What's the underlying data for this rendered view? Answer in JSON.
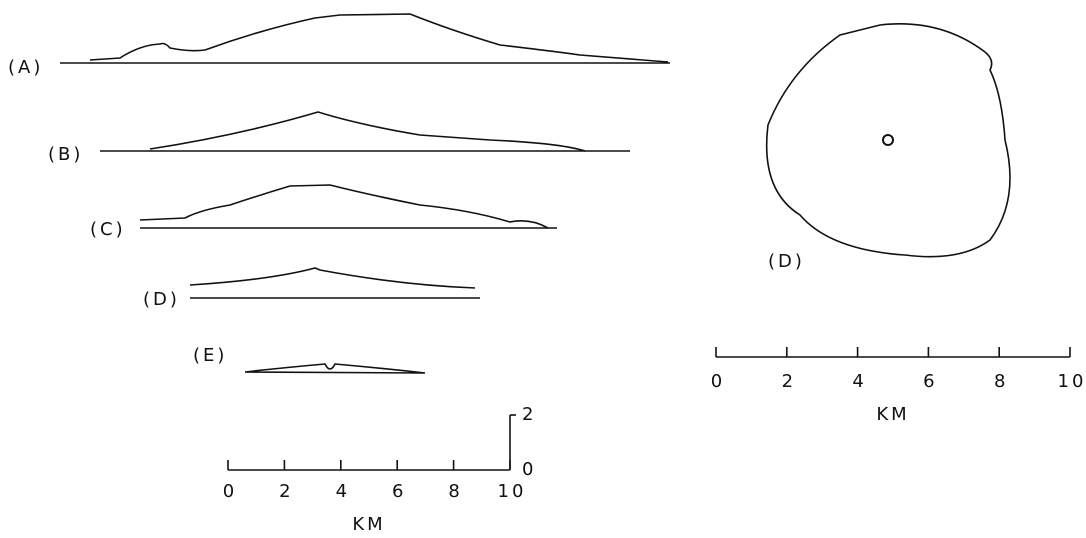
{
  "profiles": [
    {
      "label": "(A)"
    },
    {
      "label": "(B)"
    },
    {
      "label": "(C)"
    },
    {
      "label": "(D)"
    },
    {
      "label": "(E)"
    }
  ],
  "plan_view": {
    "label": "(D)"
  },
  "profile_scale": {
    "ticks": [
      "0",
      "2",
      "4",
      "6",
      "8",
      "10"
    ],
    "unit": "KM",
    "vertical_ticks": [
      "2",
      "0"
    ]
  },
  "plan_scale": {
    "ticks": [
      "0",
      "2",
      "4",
      "6",
      "8",
      "10"
    ],
    "unit": "KM"
  }
}
